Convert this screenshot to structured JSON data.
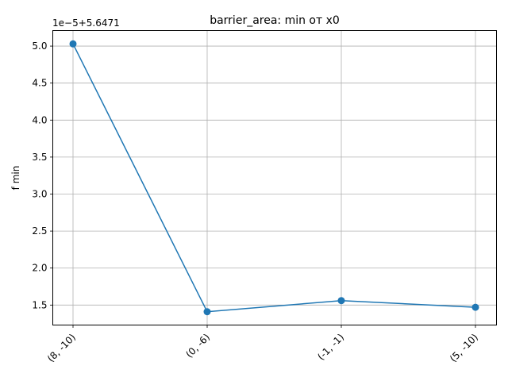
{
  "chart_data": {
    "type": "line",
    "title": "barrier_area: min от x0",
    "xlabel": "",
    "ylabel": "f min",
    "offset_label": "1e−5+5.6471",
    "categories": [
      "(8, -10)",
      "(0, -6)",
      "(-1, -1)",
      "(5, -10)"
    ],
    "series": [
      {
        "values": [
          5.03,
          1.41,
          1.56,
          1.47
        ]
      }
    ],
    "yticks": [
      "1.5",
      "2.0",
      "2.5",
      "3.0",
      "3.5",
      "4.0",
      "4.5",
      "5.0"
    ],
    "ylim": [
      1.23,
      5.21
    ],
    "grid": true,
    "line_color": "#1f77b4"
  }
}
